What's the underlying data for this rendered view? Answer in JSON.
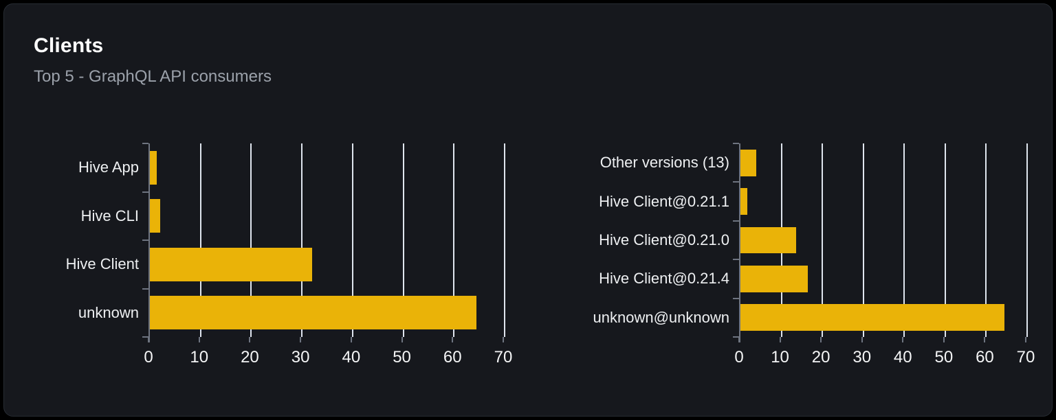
{
  "card": {
    "title": "Clients",
    "subtitle": "Top 5 - GraphQL API consumers"
  },
  "colors": {
    "background": "#000000",
    "card_background": "#16181d",
    "card_border": "#272c33",
    "title": "#ffffff",
    "subtitle": "#9ba1aa",
    "bar": "#eab308",
    "gridline": "#e0e6ef",
    "axis": "#6e7480",
    "category_label": "#eef0f2",
    "tick_label": "#f4f5f6"
  },
  "chart_data": [
    {
      "type": "bar",
      "orientation": "horizontal",
      "title": "",
      "categories": [
        "Hive App",
        "Hive CLI",
        "Hive Client",
        "unknown"
      ],
      "values": [
        1.4,
        2,
        32,
        64.4
      ],
      "xlim": [
        0,
        70
      ],
      "x_ticks": [
        0,
        10,
        20,
        30,
        40,
        50,
        60,
        70
      ],
      "grid": true,
      "legend_position": "none",
      "xlabel": "",
      "ylabel": ""
    },
    {
      "type": "bar",
      "orientation": "horizontal",
      "title": "",
      "categories": [
        "Other versions (13)",
        "Hive Client@0.21.1",
        "Hive Client@0.21.0",
        "Hive Client@0.21.4",
        "unknown@unknown"
      ],
      "values": [
        3.9,
        1.7,
        13.6,
        16.4,
        64.4
      ],
      "xlim": [
        0,
        70
      ],
      "x_ticks": [
        0,
        10,
        20,
        30,
        40,
        50,
        60,
        70
      ],
      "grid": true,
      "legend_position": "none",
      "xlabel": "",
      "ylabel": ""
    }
  ]
}
